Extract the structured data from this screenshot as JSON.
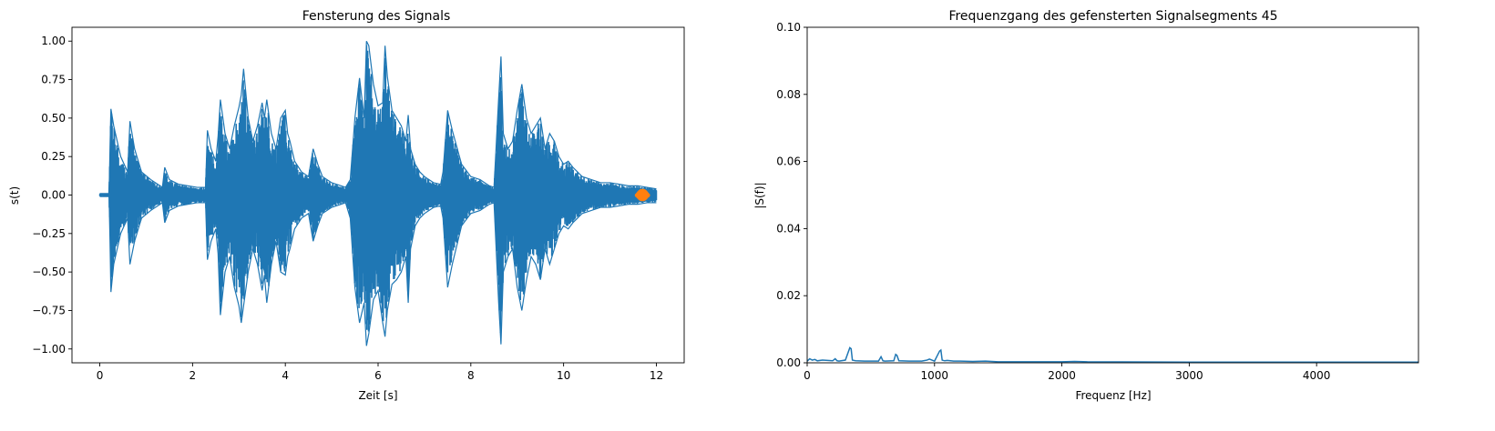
{
  "chart_data": [
    {
      "type": "line",
      "title": "Fensterung des Signals",
      "xlabel": "Zeit [s]",
      "ylabel": "s(t)",
      "xlim": [
        -0.6,
        12.6
      ],
      "ylim": [
        -1.09,
        1.09
      ],
      "xticks": [
        0,
        2,
        4,
        6,
        8,
        10,
        12
      ],
      "xtick_labels": [
        "0",
        "2",
        "4",
        "6",
        "8",
        "10",
        "12"
      ],
      "yticks": [
        -1.0,
        -0.75,
        -0.5,
        -0.25,
        0.0,
        0.25,
        0.5,
        0.75,
        1.0
      ],
      "ytick_labels": [
        "−1.00",
        "−0.75",
        "−0.50",
        "−0.25",
        "0.00",
        "0.25",
        "0.50",
        "0.75",
        "1.00"
      ],
      "grid": false,
      "series_colors": [
        "#1f77b4",
        "#ff7f0e"
      ],
      "signal_envelope": {
        "t": [
          0.0,
          0.2,
          0.22,
          0.24,
          0.3,
          0.45,
          0.6,
          0.65,
          0.75,
          0.9,
          1.1,
          1.35,
          1.4,
          1.5,
          1.7,
          1.9,
          2.1,
          2.28,
          2.32,
          2.4,
          2.5,
          2.55,
          2.6,
          2.7,
          2.8,
          2.9,
          3.0,
          3.05,
          3.1,
          3.2,
          3.3,
          3.4,
          3.5,
          3.55,
          3.6,
          3.7,
          3.8,
          3.9,
          4.0,
          4.05,
          4.1,
          4.2,
          4.35,
          4.5,
          4.6,
          4.7,
          4.8,
          5.0,
          5.2,
          5.3,
          5.4,
          5.5,
          5.6,
          5.7,
          5.75,
          5.8,
          5.9,
          6.0,
          6.1,
          6.15,
          6.2,
          6.3,
          6.4,
          6.5,
          6.6,
          6.65,
          6.7,
          6.8,
          6.9,
          7.0,
          7.1,
          7.2,
          7.35,
          7.4,
          7.5,
          7.6,
          7.8,
          8.0,
          8.2,
          8.3,
          8.4,
          8.5,
          8.6,
          8.65,
          8.7,
          8.8,
          8.9,
          9.0,
          9.1,
          9.2,
          9.3,
          9.4,
          9.5,
          9.6,
          9.7,
          9.8,
          9.9,
          10.0,
          10.1,
          10.2,
          10.3,
          10.4,
          10.6,
          10.8,
          11.0,
          11.2,
          11.4,
          11.6,
          11.8,
          12.0
        ],
        "upper": [
          0.01,
          0.01,
          0.3,
          0.56,
          0.45,
          0.25,
          0.15,
          0.48,
          0.3,
          0.15,
          0.1,
          0.05,
          0.18,
          0.1,
          0.07,
          0.06,
          0.05,
          0.05,
          0.42,
          0.3,
          0.22,
          0.38,
          0.62,
          0.4,
          0.3,
          0.45,
          0.57,
          0.65,
          0.82,
          0.5,
          0.35,
          0.45,
          0.6,
          0.5,
          0.62,
          0.4,
          0.3,
          0.5,
          0.55,
          0.4,
          0.35,
          0.22,
          0.15,
          0.12,
          0.3,
          0.2,
          0.12,
          0.08,
          0.06,
          0.05,
          0.1,
          0.5,
          0.76,
          0.5,
          1.0,
          0.97,
          0.72,
          0.58,
          0.6,
          0.97,
          0.77,
          0.55,
          0.5,
          0.45,
          0.35,
          0.52,
          0.3,
          0.2,
          0.15,
          0.12,
          0.1,
          0.08,
          0.07,
          0.15,
          0.55,
          0.42,
          0.2,
          0.12,
          0.1,
          0.08,
          0.06,
          0.05,
          0.63,
          0.9,
          0.4,
          0.3,
          0.35,
          0.55,
          0.72,
          0.5,
          0.4,
          0.45,
          0.5,
          0.3,
          0.4,
          0.35,
          0.25,
          0.2,
          0.22,
          0.18,
          0.15,
          0.12,
          0.1,
          0.08,
          0.08,
          0.07,
          0.06,
          0.06,
          0.05,
          0.04
        ],
        "lower": [
          -0.01,
          -0.01,
          -0.3,
          -0.63,
          -0.45,
          -0.25,
          -0.15,
          -0.45,
          -0.3,
          -0.15,
          -0.1,
          -0.05,
          -0.18,
          -0.1,
          -0.07,
          -0.06,
          -0.05,
          -0.05,
          -0.42,
          -0.3,
          -0.22,
          -0.38,
          -0.78,
          -0.5,
          -0.4,
          -0.6,
          -0.72,
          -0.83,
          -0.72,
          -0.5,
          -0.35,
          -0.45,
          -0.62,
          -0.52,
          -0.7,
          -0.45,
          -0.3,
          -0.5,
          -0.52,
          -0.4,
          -0.35,
          -0.22,
          -0.15,
          -0.12,
          -0.3,
          -0.2,
          -0.12,
          -0.08,
          -0.06,
          -0.05,
          -0.15,
          -0.6,
          -0.83,
          -0.7,
          -0.98,
          -0.9,
          -0.68,
          -0.62,
          -0.83,
          -0.92,
          -0.75,
          -0.58,
          -0.55,
          -0.5,
          -0.4,
          -0.7,
          -0.35,
          -0.2,
          -0.15,
          -0.12,
          -0.1,
          -0.08,
          -0.07,
          -0.15,
          -0.6,
          -0.45,
          -0.2,
          -0.12,
          -0.1,
          -0.08,
          -0.06,
          -0.05,
          -0.7,
          -0.97,
          -0.5,
          -0.4,
          -0.35,
          -0.6,
          -0.75,
          -0.55,
          -0.4,
          -0.45,
          -0.55,
          -0.35,
          -0.45,
          -0.35,
          -0.25,
          -0.2,
          -0.22,
          -0.18,
          -0.15,
          -0.12,
          -0.1,
          -0.08,
          -0.08,
          -0.07,
          -0.06,
          -0.06,
          -0.05,
          -0.05
        ]
      },
      "window_segment": {
        "t_start": 11.55,
        "t_end": 11.85,
        "amplitude": 0.04
      }
    },
    {
      "type": "line",
      "title": "Frequenzgang des gefensterten Signalsegments 45",
      "xlabel": "Frequenz [Hz]",
      "ylabel": "|S(f)|",
      "xlim": [
        0,
        4800
      ],
      "ylim": [
        0.0,
        0.1
      ],
      "xticks": [
        0,
        1000,
        2000,
        3000,
        4000
      ],
      "xtick_labels": [
        "0",
        "1000",
        "2000",
        "3000",
        "4000"
      ],
      "yticks": [
        0.0,
        0.02,
        0.04,
        0.06,
        0.08,
        0.1
      ],
      "ytick_labels": [
        "0.00",
        "0.02",
        "0.04",
        "0.06",
        "0.08",
        "0.10"
      ],
      "grid": false,
      "series_colors": [
        "#1f77b4"
      ],
      "spectrum": {
        "f": [
          0,
          20,
          40,
          60,
          80,
          120,
          200,
          220,
          235,
          250,
          300,
          335,
          345,
          355,
          380,
          450,
          560,
          580,
          595,
          610,
          680,
          695,
          705,
          720,
          800,
          900,
          940,
          960,
          1000,
          1040,
          1050,
          1060,
          1080,
          1100,
          1150,
          1200,
          1300,
          1400,
          1500,
          2000,
          2100,
          2200,
          3000,
          4000,
          4800
        ],
        "magnitude": [
          0.0005,
          0.0012,
          0.0008,
          0.001,
          0.0006,
          0.0008,
          0.0006,
          0.0012,
          0.0006,
          0.0005,
          0.0008,
          0.0045,
          0.0042,
          0.0008,
          0.0006,
          0.0005,
          0.0005,
          0.0018,
          0.0006,
          0.0005,
          0.0006,
          0.0025,
          0.0022,
          0.0006,
          0.0005,
          0.0005,
          0.0008,
          0.0011,
          0.0005,
          0.0035,
          0.0038,
          0.0008,
          0.0006,
          0.0007,
          0.0005,
          0.0005,
          0.0004,
          0.0005,
          0.0003,
          0.0003,
          0.0004,
          0.0003,
          0.0002,
          0.0002,
          0.0002
        ]
      }
    }
  ]
}
